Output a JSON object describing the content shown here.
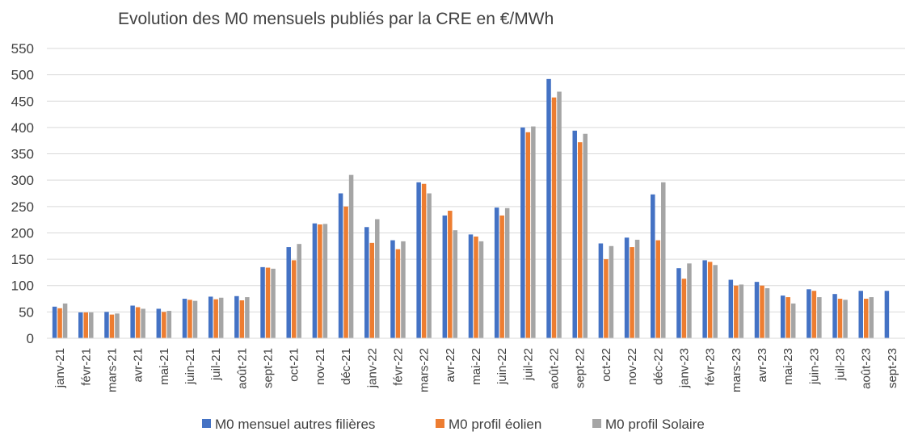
{
  "chart_data": {
    "type": "bar",
    "title": "Evolution des M0 mensuels publiés par la CRE en €/MWh",
    "xlabel": "",
    "ylabel": "",
    "ylim": [
      0,
      550
    ],
    "yticks": [
      0,
      50,
      100,
      150,
      200,
      250,
      300,
      350,
      400,
      450,
      500,
      550
    ],
    "grid": true,
    "legend": "bottom",
    "categories": [
      "janv-21",
      "févr-21",
      "mars-21",
      "avr-21",
      "mai-21",
      "juin-21",
      "juil-21",
      "août-21",
      "sept-21",
      "oct-21",
      "nov-21",
      "déc-21",
      "janv-22",
      "févr-22",
      "mars-22",
      "avr-22",
      "mai-22",
      "juin-22",
      "juil-22",
      "août-22",
      "sept-22",
      "oct-22",
      "nov-22",
      "déc-22",
      "janv-23",
      "févr-23",
      "mars-23",
      "avr-23",
      "mai-23",
      "juin-23",
      "juil-23",
      "août-23",
      "sept-23"
    ],
    "series": [
      {
        "name": "M0 mensuel autres filières",
        "color": "#4472C4",
        "values": [
          60,
          49,
          50,
          62,
          56,
          75,
          79,
          80,
          135,
          173,
          218,
          275,
          211,
          186,
          296,
          233,
          197,
          248,
          400,
          492,
          394,
          180,
          191,
          273,
          133,
          148,
          111,
          107,
          81,
          93,
          84,
          90,
          90
        ]
      },
      {
        "name": "M0 profil éolien",
        "color": "#ED7D31",
        "values": [
          57,
          49,
          45,
          59,
          50,
          73,
          74,
          72,
          134,
          148,
          216,
          250,
          181,
          169,
          293,
          242,
          193,
          233,
          391,
          457,
          372,
          150,
          173,
          186,
          113,
          145,
          100,
          100,
          78,
          90,
          75,
          75,
          null
        ]
      },
      {
        "name": "M0 profil Solaire",
        "color": "#A5A5A5",
        "values": [
          66,
          49,
          47,
          56,
          52,
          71,
          77,
          78,
          132,
          179,
          217,
          310,
          226,
          184,
          275,
          205,
          184,
          247,
          402,
          468,
          388,
          175,
          187,
          296,
          142,
          139,
          102,
          95,
          66,
          78,
          73,
          78,
          null
        ]
      }
    ]
  }
}
